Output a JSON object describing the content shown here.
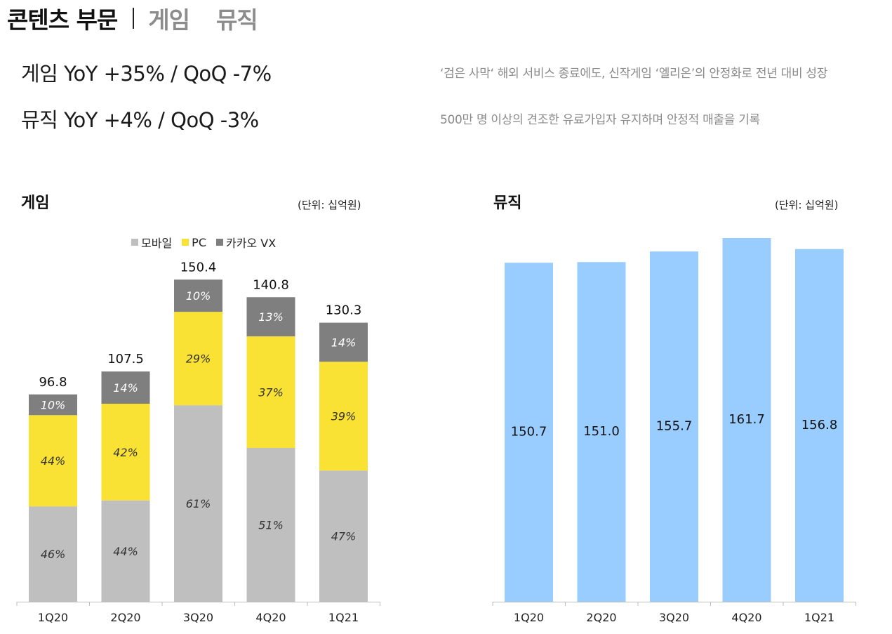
{
  "header": {
    "title": "콘텐츠 부문",
    "tabs": [
      {
        "label": "게임"
      },
      {
        "label": "뮤직"
      }
    ]
  },
  "kpis": [
    {
      "text": "게임  YoY +35% / QoQ -7%",
      "desc": "‘검은 사막‘ 해외 서비스 종료에도, 신작게임 ‘엘리온’의 안정화로 전년 대비 성장"
    },
    {
      "text": "뮤직  YoY +4% / QoQ -3%",
      "desc": "500만 명 이상의 견조한 유료가입자 유지하며 안정적 매출을 기록"
    }
  ],
  "colors": {
    "mobile": "#bfbfbf",
    "pc": "#f9e233",
    "vx": "#7f7f7f",
    "music": "#99ccff"
  },
  "chart_data": [
    {
      "type": "bar",
      "stacked": true,
      "title": "게임",
      "unit": "(단위: 십억원)",
      "categories": [
        "1Q20",
        "2Q20",
        "3Q20",
        "4Q20",
        "1Q21"
      ],
      "totals": [
        96.8,
        107.5,
        150.4,
        140.8,
        130.3
      ],
      "total_labels": [
        "96.8",
        "107.5",
        "150.4",
        "140.8",
        "130.3"
      ],
      "series": [
        {
          "name": "모바일",
          "color": "#bfbfbf",
          "share": [
            46,
            44,
            61,
            51,
            47
          ],
          "labels": [
            "46%",
            "44%",
            "61%",
            "51%",
            "47%"
          ]
        },
        {
          "name": "PC",
          "color": "#f9e233",
          "share": [
            44,
            42,
            29,
            37,
            39
          ],
          "labels": [
            "44%",
            "42%",
            "29%",
            "37%",
            "39%"
          ]
        },
        {
          "name": "카카오 VX",
          "color": "#7f7f7f",
          "share": [
            10,
            14,
            10,
            13,
            14
          ],
          "labels": [
            "10%",
            "14%",
            "10%",
            "13%",
            "14%"
          ]
        }
      ]
    },
    {
      "type": "bar",
      "title": "뮤직",
      "unit": "(단위: 십억원)",
      "categories": [
        "1Q20",
        "2Q20",
        "3Q20",
        "4Q20",
        "1Q21"
      ],
      "values": [
        150.7,
        151.0,
        155.7,
        161.7,
        156.8
      ],
      "value_labels": [
        "150.7",
        "151.0",
        "155.7",
        "161.7",
        "156.8"
      ],
      "color": "#99ccff"
    }
  ]
}
